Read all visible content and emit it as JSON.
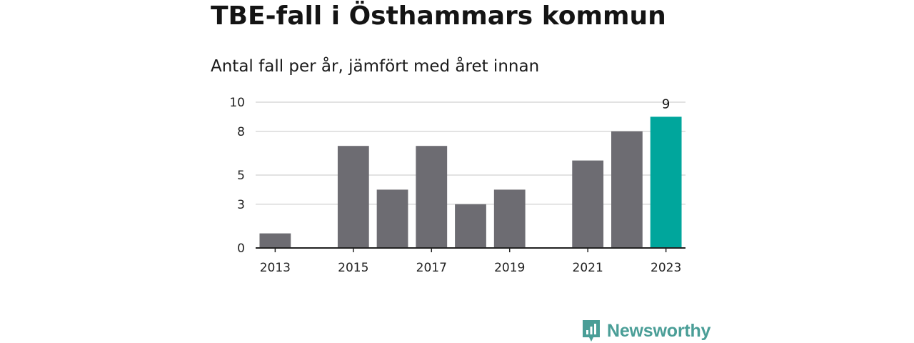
{
  "header": {
    "title": "TBE-fall i Östhammars kommun",
    "subtitle": "Antal fall per år, jämfört med året innan"
  },
  "brand": {
    "name": "Newsworthy",
    "icon": "newsworthy-logo-icon",
    "color": "#4a9e97"
  },
  "colors": {
    "bar": "#6d6c72",
    "highlight": "#00a69c",
    "grid": "#d9d9d9",
    "axis": "#222222"
  },
  "chart_data": {
    "type": "bar",
    "categories": [
      "2013",
      "2014",
      "2015",
      "2016",
      "2017",
      "2018",
      "2019",
      "2020",
      "2021",
      "2022",
      "2023"
    ],
    "values": [
      1,
      0,
      7,
      4,
      7,
      3,
      4,
      0,
      6,
      8,
      9
    ],
    "highlight_index": 10,
    "data_labels": [
      {
        "category": "2023",
        "text": "9"
      }
    ],
    "title": "TBE-fall i Östhammars kommun",
    "subtitle": "Antal fall per år, jämfört med året innan",
    "xlabel": "",
    "ylabel": "",
    "ylim": [
      0,
      10
    ],
    "yticks": [
      0,
      3,
      5,
      8,
      10
    ],
    "xticks": [
      "2013",
      "2015",
      "2017",
      "2019",
      "2021",
      "2023"
    ],
    "grid": true,
    "legend": "none"
  }
}
